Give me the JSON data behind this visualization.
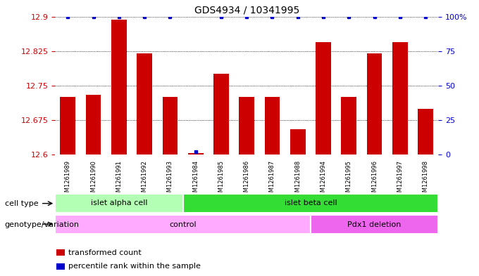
{
  "title": "GDS4934 / 10341995",
  "samples": [
    "GSM1261989",
    "GSM1261990",
    "GSM1261991",
    "GSM1261992",
    "GSM1261993",
    "GSM1261984",
    "GSM1261985",
    "GSM1261986",
    "GSM1261987",
    "GSM1261988",
    "GSM1261994",
    "GSM1261995",
    "GSM1261996",
    "GSM1261997",
    "GSM1261998"
  ],
  "transformed_count": [
    12.725,
    12.73,
    12.893,
    12.82,
    12.725,
    12.603,
    12.775,
    12.725,
    12.725,
    12.655,
    12.845,
    12.725,
    12.82,
    12.845,
    12.7
  ],
  "percentile_rank": [
    100,
    100,
    100,
    100,
    100,
    2,
    100,
    100,
    100,
    100,
    100,
    100,
    100,
    100,
    100
  ],
  "ylim_left": [
    12.6,
    12.9
  ],
  "yticks_left": [
    12.6,
    12.675,
    12.75,
    12.825,
    12.9
  ],
  "yticks_right": [
    0,
    25,
    50,
    75,
    100
  ],
  "bar_color": "#cc0000",
  "dot_color": "#0000cc",
  "bar_width": 0.6,
  "cell_type_groups": [
    {
      "label": "islet alpha cell",
      "start": 0,
      "end": 4,
      "color": "#b3ffb3"
    },
    {
      "label": "islet beta cell",
      "start": 5,
      "end": 14,
      "color": "#33dd33"
    }
  ],
  "genotype_groups": [
    {
      "label": "control",
      "start": 0,
      "end": 9,
      "color": "#ffaaff"
    },
    {
      "label": "Pdx1 deletion",
      "start": 10,
      "end": 14,
      "color": "#ee66ee"
    }
  ],
  "legend_items": [
    {
      "color": "#cc0000",
      "label": "transformed count"
    },
    {
      "color": "#0000cc",
      "label": "percentile rank within the sample"
    }
  ],
  "left_axis_color": "#cc0000",
  "right_axis_color": "#0000cc",
  "plot_bg": "#ffffff",
  "tick_bg": "#d0d0d0"
}
